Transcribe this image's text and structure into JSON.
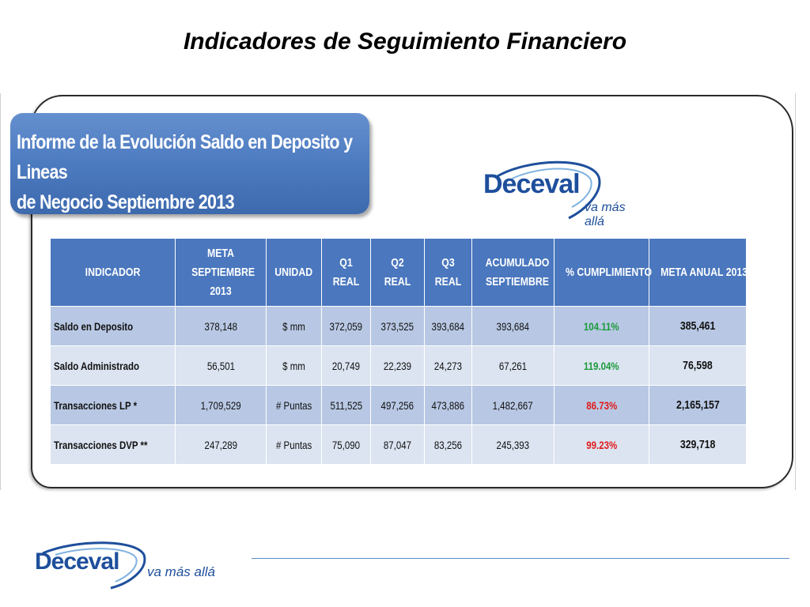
{
  "slide": {
    "title": "Indicadores de Seguimiento Financiero"
  },
  "report": {
    "banner_line1": "Informe de la Evolución Saldo en Deposito y Lineas",
    "banner_line2": "de Negocio Septiembre 2013"
  },
  "logo": {
    "name": "Deceval",
    "tagline": "va más allá"
  },
  "table": {
    "headers": [
      "INDICADOR",
      "META SEPTIEMBRE 2013",
      "UNIDAD",
      "Q1 REAL",
      "Q2 REAL",
      "Q3 REAL",
      "ACUMULADO SEPTIEMBRE",
      "% CUMPLIMIENTO",
      "META ANUAL 2013"
    ],
    "rows": [
      {
        "indicador": "Saldo en Deposito",
        "meta": "378,148",
        "unidad": "$ mm",
        "q1": "372,059",
        "q2": "373,525",
        "q3": "393,684",
        "acumulado": "393,684",
        "cumplimiento": "104.11%",
        "cumplimiento_color": "#1a9a3a",
        "meta_anual": "385,461"
      },
      {
        "indicador": "Saldo Administrado",
        "meta": "56,501",
        "unidad": "$ mm",
        "q1": "20,749",
        "q2": "22,239",
        "q3": "24,273",
        "acumulado": "67,261",
        "cumplimiento": "119.04%",
        "cumplimiento_color": "#1a9a3a",
        "meta_anual": "76,598"
      },
      {
        "indicador": "Transacciones LP *",
        "meta": "1,709,529",
        "unidad": "#  Puntas",
        "q1": "511,525",
        "q2": "497,256",
        "q3": "473,886",
        "acumulado": "1,482,667",
        "cumplimiento": "86.73%",
        "cumplimiento_color": "#e01b1b",
        "meta_anual": "2,165,157"
      },
      {
        "indicador": "Transacciones DVP **",
        "meta": "247,289",
        "unidad": "#  Puntas",
        "q1": "75,090",
        "q2": "87,047",
        "q3": "83,256",
        "acumulado": "245,393",
        "cumplimiento": "99.23%",
        "cumplimiento_color": "#e01b1b",
        "meta_anual": "329,718"
      }
    ]
  },
  "colors": {
    "header_blue": "#4a77be",
    "row_dark": "#b8c8e4",
    "row_light": "#dce4f1",
    "brand_blue": "#1e4f9c"
  }
}
